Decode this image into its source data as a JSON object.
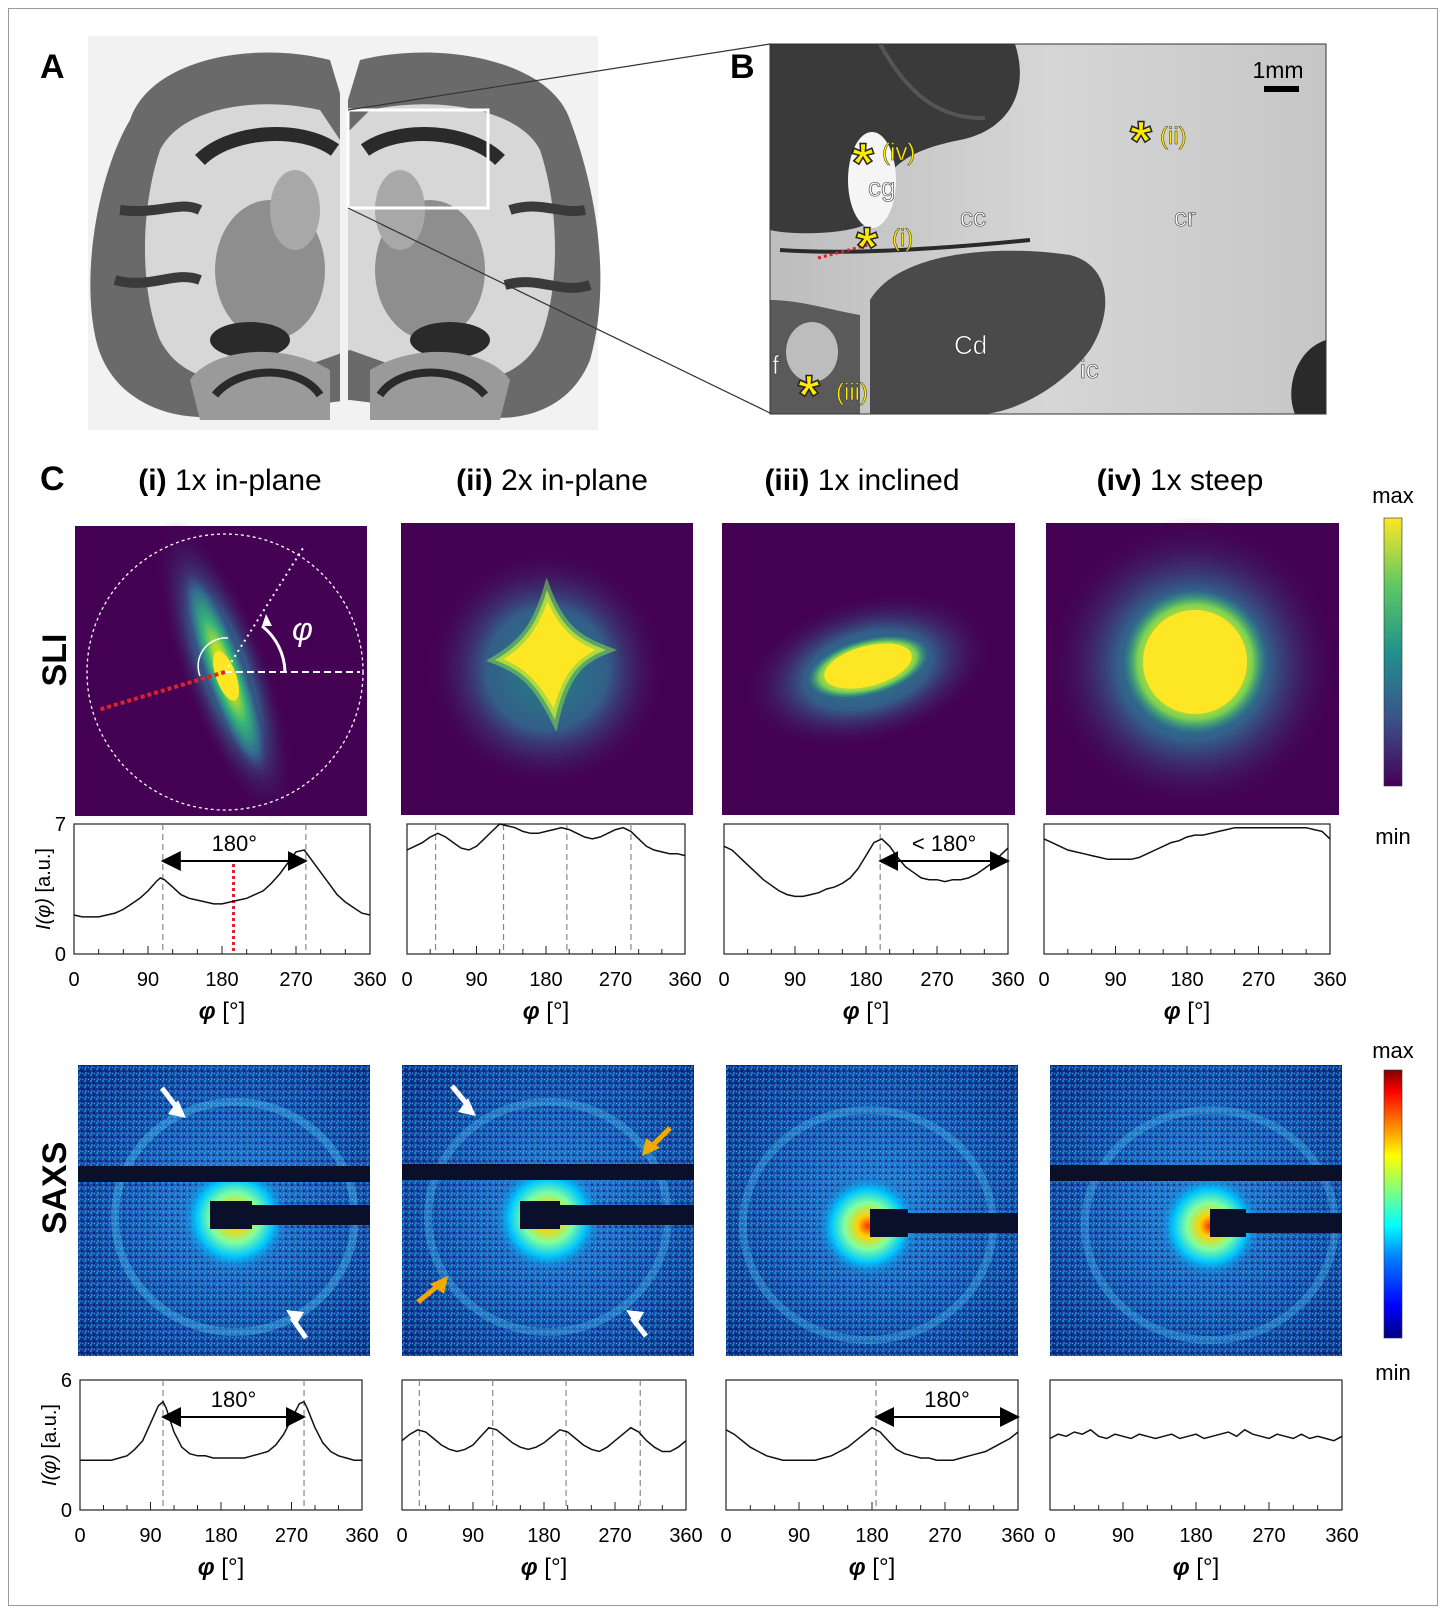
{
  "panels": {
    "a": {
      "letter": "A"
    },
    "b": {
      "letter": "B",
      "scale_bar": "1mm",
      "regions": {
        "cg": "cg",
        "cc": "cc",
        "cr": "cr",
        "cd": "Cd",
        "ic": "ic",
        "f": "f"
      },
      "points": {
        "i": "(i)",
        "ii": "(ii)",
        "iii": "(iii)",
        "iv": "(iv)"
      }
    },
    "c": {
      "letter": "C"
    }
  },
  "columns": [
    {
      "num": "(i)",
      "label": "1x in-plane"
    },
    {
      "num": "(ii)",
      "label": "2x in-plane"
    },
    {
      "num": "(iii)",
      "label": "1x inclined"
    },
    {
      "num": "(iv)",
      "label": "1x steep"
    }
  ],
  "rows": {
    "sli": "SLI",
    "saxs": "SAXS"
  },
  "phi_symbol": "φ",
  "colorbars": {
    "sli": {
      "max": "max",
      "min": "min",
      "colormap": "viridis",
      "colors": [
        "#440154",
        "#3b528b",
        "#21918c",
        "#5ec962",
        "#fde725"
      ]
    },
    "saxs": {
      "max": "max",
      "min": "min",
      "colormap": "jet",
      "colors": [
        "#00007f",
        "#0000ff",
        "#007fff",
        "#00ffff",
        "#7fff7f",
        "#ffff00",
        "#ff7f00",
        "#ff0000",
        "#7f0000"
      ]
    }
  },
  "chart_data": [
    {
      "type": "line",
      "row": "SLI",
      "column": "(i)",
      "x": [
        0,
        10,
        20,
        30,
        40,
        50,
        60,
        70,
        80,
        90,
        100,
        105,
        110,
        120,
        130,
        140,
        150,
        160,
        170,
        180,
        190,
        200,
        210,
        220,
        230,
        240,
        250,
        260,
        270,
        280,
        290,
        300,
        310,
        320,
        330,
        340,
        350,
        360
      ],
      "y": [
        2.1,
        2.0,
        2.0,
        2.0,
        2.1,
        2.2,
        2.4,
        2.7,
        3.0,
        3.4,
        3.9,
        4.1,
        4.0,
        3.6,
        3.2,
        3.0,
        2.9,
        2.8,
        2.7,
        2.7,
        2.8,
        2.9,
        3.0,
        3.2,
        3.4,
        3.8,
        4.3,
        4.9,
        5.5,
        5.6,
        5.0,
        4.4,
        3.8,
        3.2,
        2.8,
        2.5,
        2.2,
        2.1
      ],
      "ylim": [
        0,
        7
      ],
      "xlim": [
        0,
        360
      ],
      "xticks": [
        0,
        90,
        180,
        270,
        360
      ],
      "yticks": [
        0,
        7
      ],
      "xlabel": "φ  [°]",
      "ylabel": "I(φ) [a.u.]",
      "peaks": [
        108,
        282
      ],
      "red_line": 194,
      "annotation": {
        "text": "180°",
        "from": 108,
        "to": 282
      }
    },
    {
      "type": "line",
      "row": "SLI",
      "column": "(ii)",
      "x": [
        0,
        10,
        20,
        30,
        40,
        50,
        60,
        70,
        80,
        90,
        100,
        110,
        120,
        130,
        140,
        150,
        160,
        170,
        180,
        190,
        200,
        210,
        220,
        230,
        240,
        250,
        260,
        270,
        280,
        290,
        300,
        310,
        320,
        330,
        340,
        350,
        360
      ],
      "y": [
        5.6,
        5.8,
        6.0,
        6.3,
        6.5,
        6.3,
        6.0,
        5.7,
        5.6,
        5.8,
        6.2,
        6.6,
        7.0,
        6.9,
        6.8,
        6.6,
        6.5,
        6.5,
        6.6,
        6.7,
        6.8,
        6.7,
        6.5,
        6.3,
        6.2,
        6.3,
        6.5,
        6.7,
        6.8,
        6.6,
        6.2,
        5.8,
        5.6,
        5.5,
        5.4,
        5.4,
        5.3
      ],
      "ylim": [
        0,
        7
      ],
      "xlim": [
        0,
        360
      ],
      "xticks": [
        0,
        90,
        180,
        270,
        360
      ],
      "xlabel": "φ  [°]",
      "peaks": [
        37,
        125,
        207,
        290
      ]
    },
    {
      "type": "line",
      "row": "SLI",
      "column": "(iii)",
      "x": [
        0,
        10,
        20,
        30,
        40,
        50,
        60,
        70,
        80,
        90,
        100,
        110,
        120,
        130,
        140,
        150,
        160,
        170,
        180,
        190,
        200,
        210,
        220,
        230,
        240,
        250,
        260,
        270,
        280,
        290,
        300,
        310,
        320,
        330,
        340,
        350,
        360
      ],
      "y": [
        5.8,
        5.6,
        5.2,
        4.8,
        4.4,
        4.0,
        3.7,
        3.4,
        3.2,
        3.1,
        3.1,
        3.2,
        3.3,
        3.5,
        3.6,
        3.8,
        4.1,
        4.6,
        5.3,
        6.0,
        6.2,
        5.8,
        5.2,
        4.7,
        4.4,
        4.1,
        4.0,
        4.0,
        3.9,
        4.0,
        4.0,
        4.1,
        4.3,
        4.6,
        4.9,
        5.3,
        5.7
      ],
      "ylim": [
        0,
        7
      ],
      "xlim": [
        0,
        360
      ],
      "xticks": [
        0,
        90,
        180,
        270,
        360
      ],
      "xlabel": "φ  [°]",
      "peaks": [
        198
      ],
      "annotation": {
        "text": "< 180°",
        "from": 198,
        "to": 360
      }
    },
    {
      "type": "line",
      "row": "SLI",
      "column": "(iv)",
      "x": [
        0,
        10,
        20,
        30,
        40,
        50,
        60,
        70,
        80,
        90,
        100,
        110,
        120,
        130,
        140,
        150,
        160,
        170,
        180,
        190,
        200,
        210,
        220,
        230,
        240,
        250,
        260,
        270,
        280,
        290,
        300,
        310,
        320,
        330,
        340,
        350,
        360
      ],
      "y": [
        6.2,
        6.0,
        5.8,
        5.6,
        5.5,
        5.4,
        5.3,
        5.2,
        5.1,
        5.1,
        5.1,
        5.1,
        5.2,
        5.4,
        5.6,
        5.8,
        6.0,
        6.1,
        6.3,
        6.4,
        6.4,
        6.5,
        6.6,
        6.7,
        6.8,
        6.8,
        6.8,
        6.8,
        6.8,
        6.8,
        6.8,
        6.8,
        6.8,
        6.8,
        6.7,
        6.6,
        6.2
      ],
      "ylim": [
        0,
        7
      ],
      "xlim": [
        0,
        360
      ],
      "xticks": [
        0,
        90,
        180,
        270,
        360
      ],
      "xlabel": "φ  [°]"
    },
    {
      "type": "line",
      "row": "SAXS",
      "column": "(i)",
      "x": [
        0,
        10,
        20,
        30,
        40,
        50,
        60,
        70,
        80,
        90,
        100,
        106,
        110,
        120,
        130,
        140,
        150,
        160,
        170,
        180,
        190,
        200,
        210,
        220,
        230,
        240,
        250,
        260,
        270,
        280,
        286,
        290,
        300,
        310,
        320,
        330,
        340,
        350,
        360
      ],
      "y": [
        2.3,
        2.3,
        2.3,
        2.3,
        2.3,
        2.4,
        2.5,
        2.8,
        3.2,
        4.0,
        4.8,
        5.0,
        4.7,
        3.6,
        2.9,
        2.6,
        2.5,
        2.5,
        2.4,
        2.4,
        2.4,
        2.4,
        2.4,
        2.5,
        2.6,
        2.7,
        3.0,
        3.5,
        4.2,
        4.9,
        5.0,
        4.7,
        3.8,
        3.1,
        2.7,
        2.5,
        2.4,
        2.3,
        2.3
      ],
      "ylim": [
        0,
        6
      ],
      "xlim": [
        0,
        360
      ],
      "xticks": [
        0,
        90,
        180,
        270,
        360
      ],
      "yticks": [
        0,
        6
      ],
      "xlabel": "φ  [°]",
      "ylabel": "I(φ) [a.u.]",
      "peaks": [
        106,
        286
      ],
      "annotation": {
        "text": "180°",
        "from": 106,
        "to": 286
      }
    },
    {
      "type": "line",
      "row": "SAXS",
      "column": "(ii)",
      "x": [
        0,
        10,
        20,
        30,
        40,
        50,
        60,
        70,
        80,
        90,
        100,
        110,
        120,
        130,
        140,
        150,
        160,
        170,
        180,
        190,
        200,
        210,
        220,
        230,
        240,
        250,
        260,
        270,
        280,
        290,
        300,
        310,
        320,
        330,
        340,
        350,
        360
      ],
      "y": [
        3.2,
        3.5,
        3.7,
        3.6,
        3.3,
        3.0,
        2.8,
        2.7,
        2.8,
        3.0,
        3.4,
        3.8,
        3.7,
        3.4,
        3.1,
        2.9,
        2.8,
        2.9,
        3.1,
        3.4,
        3.7,
        3.6,
        3.3,
        3.0,
        2.8,
        2.7,
        2.9,
        3.2,
        3.5,
        3.8,
        3.6,
        3.2,
        2.9,
        2.7,
        2.7,
        2.9,
        3.2
      ],
      "ylim": [
        0,
        6
      ],
      "xlim": [
        0,
        360
      ],
      "xticks": [
        0,
        90,
        180,
        270,
        360
      ],
      "xlabel": "φ  [°]",
      "peaks": [
        22,
        115,
        208,
        302
      ]
    },
    {
      "type": "line",
      "row": "SAXS",
      "column": "(iii)",
      "x": [
        0,
        10,
        20,
        30,
        40,
        50,
        60,
        70,
        80,
        90,
        100,
        110,
        120,
        130,
        140,
        150,
        160,
        170,
        180,
        190,
        200,
        210,
        220,
        230,
        240,
        250,
        260,
        270,
        280,
        290,
        300,
        310,
        320,
        330,
        340,
        350,
        360
      ],
      "y": [
        3.7,
        3.5,
        3.2,
        2.9,
        2.7,
        2.5,
        2.4,
        2.3,
        2.3,
        2.3,
        2.3,
        2.3,
        2.4,
        2.5,
        2.7,
        2.9,
        3.2,
        3.5,
        3.8,
        3.6,
        3.2,
        2.8,
        2.6,
        2.5,
        2.4,
        2.4,
        2.3,
        2.3,
        2.3,
        2.4,
        2.5,
        2.6,
        2.7,
        2.9,
        3.1,
        3.3,
        3.6
      ],
      "ylim": [
        0,
        6
      ],
      "xlim": [
        0,
        360
      ],
      "xticks": [
        0,
        90,
        180,
        270,
        360
      ],
      "xlabel": "φ  [°]",
      "peaks": [
        185
      ],
      "annotation": {
        "text": "180°",
        "from": 185,
        "to": 360
      }
    },
    {
      "type": "line",
      "row": "SAXS",
      "column": "(iv)",
      "x": [
        0,
        10,
        20,
        30,
        40,
        50,
        60,
        70,
        80,
        90,
        100,
        110,
        120,
        130,
        140,
        150,
        160,
        170,
        180,
        190,
        200,
        210,
        220,
        230,
        240,
        250,
        260,
        270,
        280,
        290,
        300,
        310,
        320,
        330,
        340,
        350,
        360
      ],
      "y": [
        3.3,
        3.5,
        3.4,
        3.6,
        3.5,
        3.7,
        3.4,
        3.3,
        3.5,
        3.4,
        3.3,
        3.5,
        3.4,
        3.3,
        3.4,
        3.5,
        3.3,
        3.4,
        3.5,
        3.3,
        3.4,
        3.5,
        3.6,
        3.4,
        3.7,
        3.5,
        3.4,
        3.3,
        3.5,
        3.4,
        3.3,
        3.5,
        3.3,
        3.4,
        3.3,
        3.2,
        3.4
      ],
      "ylim": [
        0,
        6
      ],
      "xlim": [
        0,
        360
      ],
      "xticks": [
        0,
        90,
        180,
        270,
        360
      ],
      "xlabel": "φ  [°]"
    }
  ]
}
